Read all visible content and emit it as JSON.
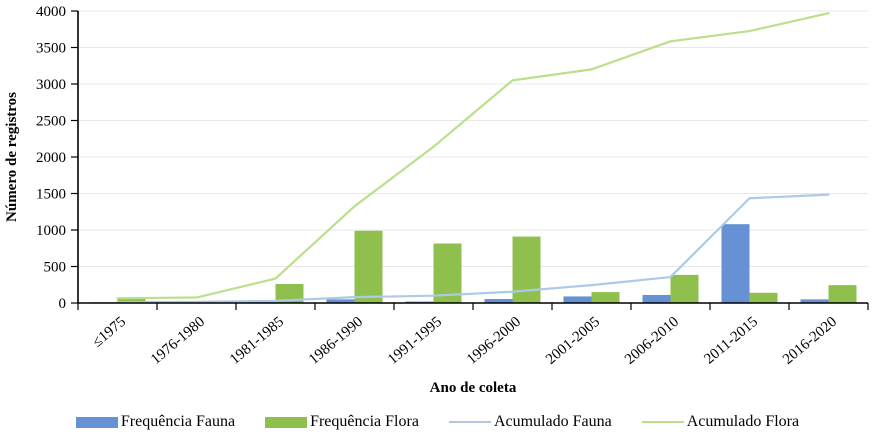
{
  "chart_data": {
    "type": "bar+line",
    "title": "",
    "xlabel": "Ano de coleta",
    "ylabel": "Número de registros",
    "categories": [
      "≤1975",
      "1976-1980",
      "1981-1985",
      "1986-1990",
      "1991-1995",
      "1996-2000",
      "2001-2005",
      "2006-2010",
      "2011-2015",
      "2016-2020"
    ],
    "series": [
      {
        "name": "Frequência Fauna",
        "type": "bar",
        "color": "#6691d4",
        "values": [
          10,
          5,
          15,
          50,
          20,
          55,
          90,
          110,
          1080,
          50
        ]
      },
      {
        "name": "Frequência Flora",
        "type": "bar",
        "color": "#8fc04d",
        "values": [
          65,
          10,
          260,
          990,
          815,
          910,
          150,
          385,
          140,
          245
        ]
      },
      {
        "name": "Acumulado Fauna",
        "type": "line",
        "color": "#aec9e8",
        "values": [
          10,
          15,
          30,
          80,
          100,
          155,
          245,
          355,
          1435,
          1485
        ]
      },
      {
        "name": "Acumulado Flora",
        "type": "line",
        "color": "#b9e08b",
        "values": [
          65,
          75,
          335,
          1325,
          2140,
          3050,
          3200,
          3585,
          3725,
          3970
        ]
      }
    ],
    "ylim": [
      0,
      4000
    ],
    "ytick_step": 500,
    "grid": true,
    "grid_color": "#e8e8e8",
    "axis_color": "#000000",
    "legend_position": "bottom"
  }
}
